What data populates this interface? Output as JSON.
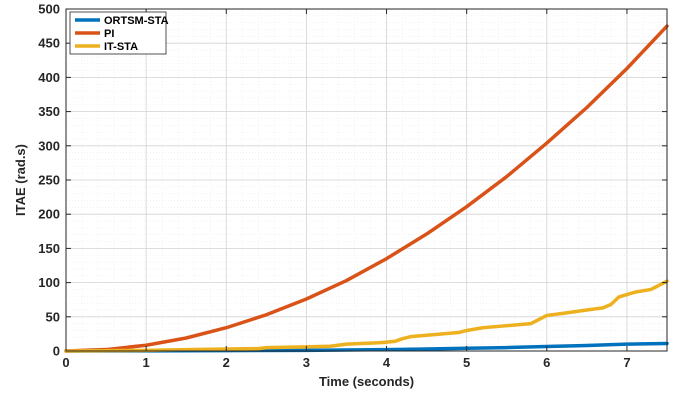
{
  "chart_data": {
    "type": "line",
    "title": "",
    "xlabel": "Time (seconds)",
    "ylabel": "ITAE (rad.s)",
    "xlim": [
      0,
      7.5
    ],
    "ylim": [
      0,
      500
    ],
    "xticks": [
      0,
      1,
      2,
      3,
      4,
      5,
      6,
      7
    ],
    "yticks": [
      0,
      50,
      100,
      150,
      200,
      250,
      300,
      350,
      400,
      450,
      500
    ],
    "grid": true,
    "minor_grid": true,
    "legend_position": "top-left",
    "series": [
      {
        "name": "ORTSM-STA",
        "color": "#0072BD",
        "x": [
          0,
          1,
          2,
          3,
          4,
          4.5,
          5,
          5.5,
          6,
          6.5,
          7,
          7.5
        ],
        "y": [
          0,
          0.2,
          0.5,
          1,
          2,
          3,
          4,
          5,
          6.5,
          8,
          10,
          11
        ]
      },
      {
        "name": "PI",
        "color": "#D95319",
        "x": [
          0,
          0.5,
          1,
          1.5,
          2,
          2.5,
          3,
          3.5,
          4,
          4.5,
          5,
          5.5,
          6,
          6.5,
          7,
          7.5
        ],
        "y": [
          0,
          2.1,
          8.4,
          19,
          34,
          53,
          76,
          103,
          135,
          171,
          211,
          255,
          304,
          356,
          413,
          475
        ]
      },
      {
        "name": "IT-STA",
        "color": "#EDB120",
        "x": [
          0,
          0.5,
          1,
          1.5,
          2,
          2.4,
          2.5,
          3,
          3.3,
          3.5,
          3.9,
          4.1,
          4.2,
          4.3,
          4.5,
          4.9,
          5.0,
          5.2,
          5.5,
          5.8,
          5.9,
          6.0,
          6.2,
          6.5,
          6.7,
          6.8,
          6.9,
          7.1,
          7.3,
          7.5
        ],
        "y": [
          0,
          0.5,
          1,
          2,
          3,
          3.5,
          5,
          6,
          7,
          10,
          12,
          14,
          18,
          21,
          23,
          27,
          30,
          34,
          37,
          40,
          46,
          52,
          55,
          60,
          63,
          68,
          79,
          86,
          90,
          102
        ]
      }
    ]
  }
}
